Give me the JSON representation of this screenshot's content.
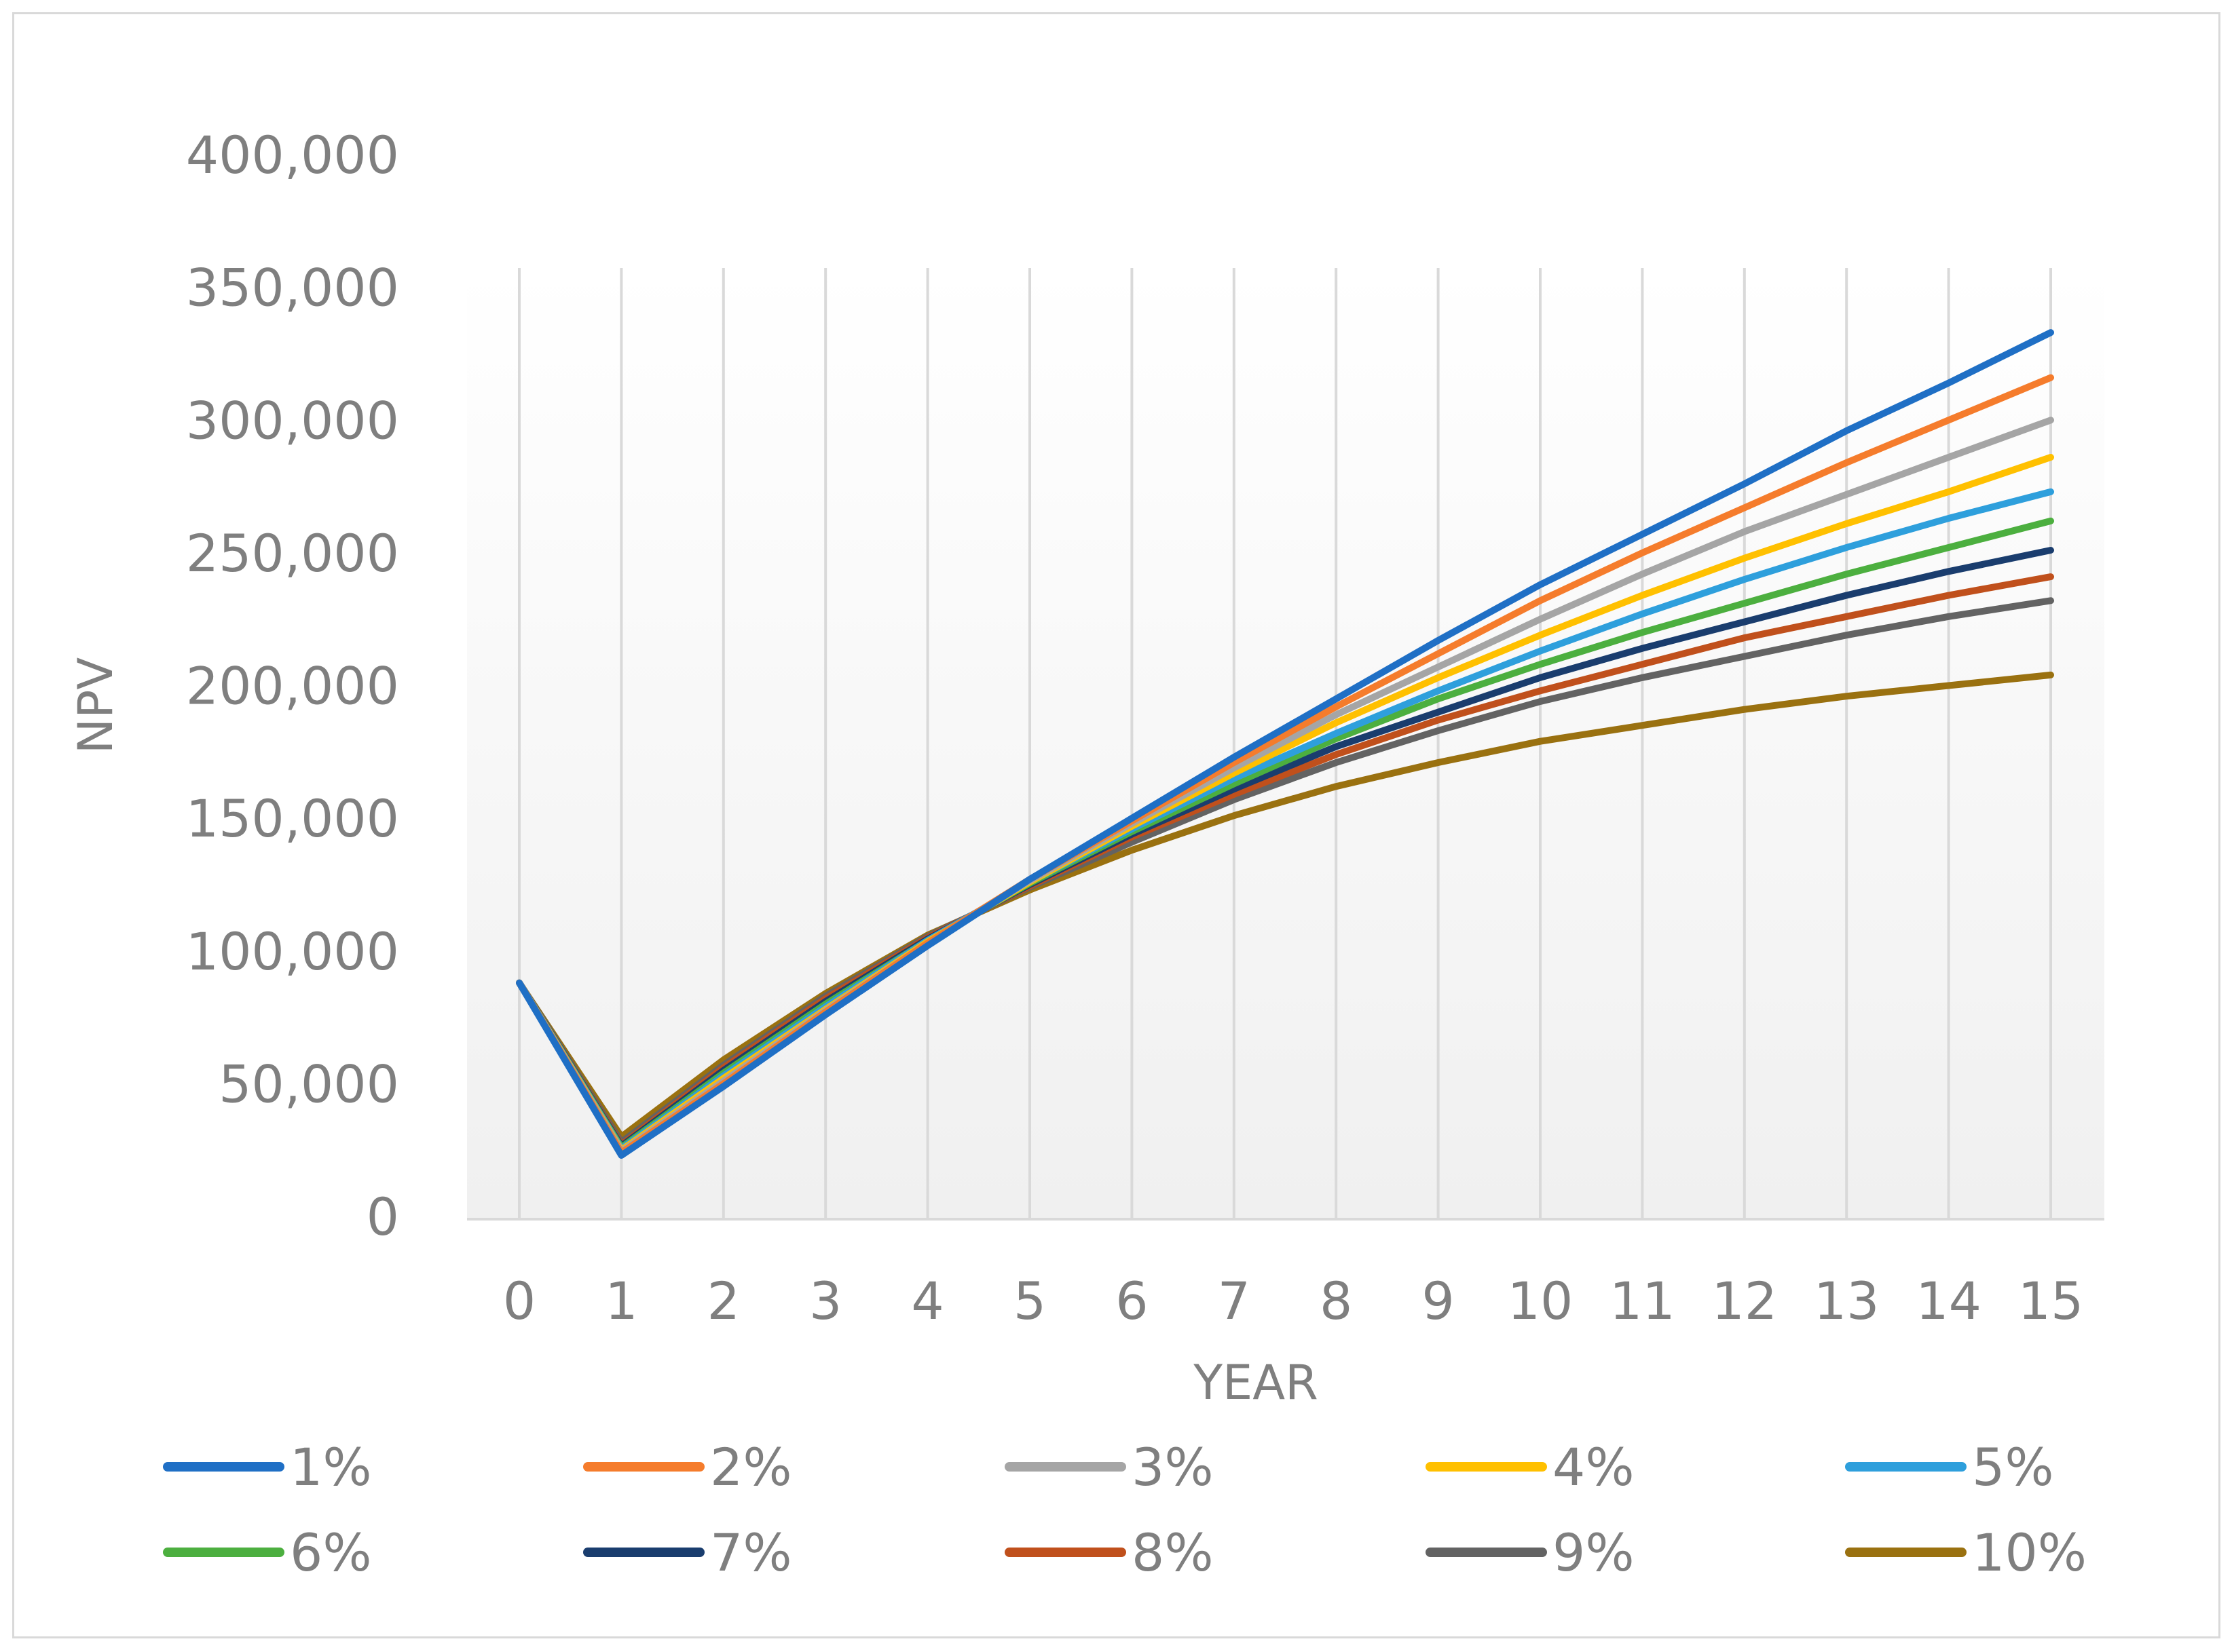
{
  "chart_data": {
    "type": "line",
    "title": "",
    "xlabel": "YEAR",
    "ylabel": "NPV",
    "categories": [
      "0",
      "1",
      "2",
      "3",
      "4",
      "5",
      "6",
      "7",
      "8",
      "9",
      "10",
      "11",
      "12",
      "13",
      "14",
      "15"
    ],
    "ylim": [
      0,
      400000
    ],
    "yticks": [
      0,
      50000,
      100000,
      150000,
      200000,
      250000,
      300000,
      350000,
      400000
    ],
    "ytick_labels": [
      "0",
      "50,000",
      "100,000",
      "150,000",
      "200,000",
      "250,000",
      "300,000",
      "350,000",
      "400,000"
    ],
    "grid": "vertical",
    "legend_position": "bottom",
    "series": [
      {
        "name": "1%",
        "color": "#1f6fc5",
        "values": [
          88000,
          23000,
          49000,
          76000,
          102000,
          127000,
          150000,
          173000,
          195000,
          217000,
          238000,
          257000,
          276000,
          296000,
          314000,
          333000
        ]
      },
      {
        "name": "2%",
        "color": "#f57c2c",
        "values": [
          88000,
          24000,
          50000,
          77000,
          103000,
          127000,
          149000,
          171000,
          192000,
          212000,
          232000,
          250000,
          267000,
          284000,
          300000,
          316000
        ]
      },
      {
        "name": "3%",
        "color": "#a5a5a5",
        "values": [
          88000,
          24500,
          51000,
          77500,
          103000,
          126500,
          148000,
          169000,
          189000,
          207000,
          225000,
          242000,
          258000,
          272000,
          286000,
          300000
        ]
      },
      {
        "name": "4%",
        "color": "#ffc000",
        "values": [
          88000,
          25000,
          52000,
          78000,
          103500,
          126000,
          147000,
          167000,
          186000,
          203000,
          219000,
          234000,
          248000,
          261000,
          273000,
          286000
        ]
      },
      {
        "name": "5%",
        "color": "#2e9fdc",
        "values": [
          88000,
          25500,
          53000,
          79000,
          104000,
          126000,
          146000,
          165000,
          182000,
          198000,
          213000,
          227000,
          240000,
          252000,
          263000,
          273000
        ]
      },
      {
        "name": "6%",
        "color": "#4caf3f",
        "values": [
          88000,
          26000,
          54000,
          80000,
          104000,
          125500,
          145000,
          163000,
          180000,
          195000,
          208000,
          220000,
          231000,
          242000,
          252000,
          262000
        ]
      },
      {
        "name": "7%",
        "color": "#1a3d6e",
        "values": [
          88000,
          26500,
          55000,
          81000,
          104500,
          125000,
          144000,
          161000,
          177000,
          190000,
          203000,
          214000,
          224000,
          234000,
          243000,
          251000
        ]
      },
      {
        "name": "8%",
        "color": "#c0501c",
        "values": [
          88000,
          27000,
          56000,
          82000,
          105000,
          124500,
          143000,
          159000,
          174000,
          187000,
          198000,
          208000,
          218000,
          226000,
          234000,
          241000
        ]
      },
      {
        "name": "9%",
        "color": "#636363",
        "values": [
          88000,
          28000,
          57000,
          83000,
          105500,
          124000,
          141000,
          157000,
          171000,
          183000,
          194000,
          203000,
          211000,
          219000,
          226000,
          232000
        ]
      },
      {
        "name": "10%",
        "color": "#9a7110",
        "values": [
          88000,
          30000,
          59000,
          84000,
          106000,
          123000,
          138000,
          151000,
          162000,
          171000,
          179000,
          185000,
          191000,
          196000,
          200000,
          204000
        ]
      }
    ]
  }
}
